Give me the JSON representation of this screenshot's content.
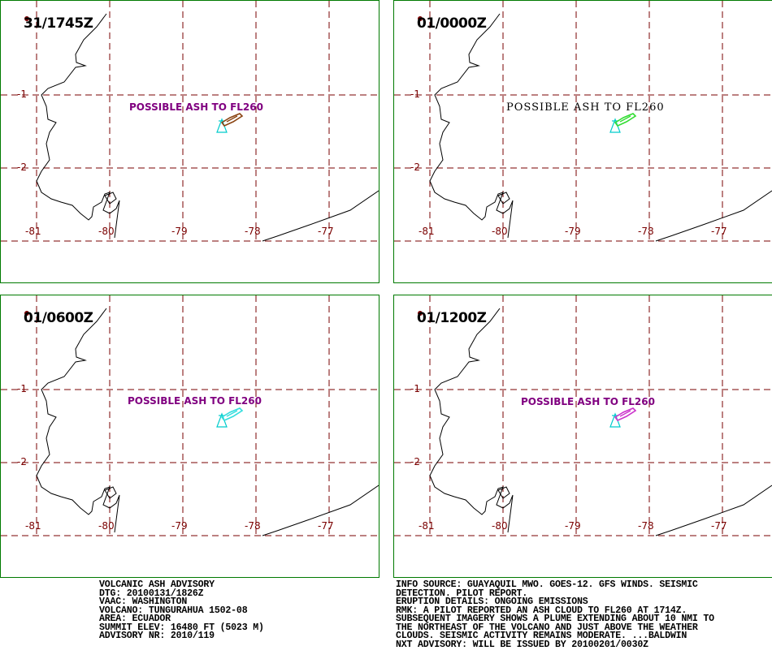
{
  "panels": [
    {
      "time": "31/1745Z",
      "label": "POSSIBLE ASH TO FL260",
      "ash_color": "#8b4513"
    },
    {
      "time": "01/0000Z",
      "label": "POSSIBLE ASH TO FL260",
      "ash_color": "#33dd33"
    },
    {
      "time": "01/0600Z",
      "label": "POSSIBLE ASH TO FL260",
      "ash_color": "#33dddd"
    },
    {
      "time": "01/1200Z",
      "label": "POSSIBLE ASH TO FL260",
      "ash_color": "#cc33cc"
    }
  ],
  "lat_labels": [
    "-1",
    "-2"
  ],
  "lon_labels": [
    "-81",
    "-80",
    "-79",
    "-78",
    "-77"
  ],
  "colors": {
    "frame": "#007a00",
    "grid": "#7a0000",
    "volcano": "#00cccc",
    "coast": "#000000"
  },
  "advisory_left": [
    "VOLCANIC ASH ADVISORY",
    "DTG: 20100131/1826Z",
    "VAAC: WASHINGTON",
    "VOLCANO: TUNGURAHUA 1502-08",
    "AREA: ECUADOR",
    "SUMMIT ELEV: 16480 FT (5023 M)",
    "ADVISORY NR: 2010/119"
  ],
  "advisory_right": [
    "INFO SOURCE: GUAYAQUIL MWO. GOES-12. GFS WINDS. SEISMIC",
    "DETECTION. PILOT REPORT.",
    "ERUPTION DETAILS: ONGOING EMISSIONS",
    "RMK: A PILOT REPORTED AN ASH CLOUD TO FL260 AT 1714Z.",
    "SUBSEQUENT IMAGERY SHOWS A PLUME EXTENDING ABOUT 10 NMI TO",
    "THE NORTHEAST OF THE VOLCANO AND JUST ABOVE THE WEATHER",
    "CLOUDS. SEISMIC ACTIVITY REMAINS MODERATE. ...BALDWIN",
    "NXT ADVISORY: WILL BE ISSUED BY 20100201/0030Z"
  ]
}
